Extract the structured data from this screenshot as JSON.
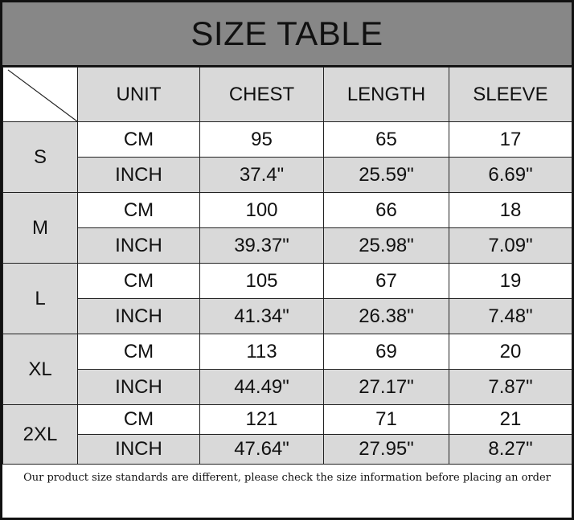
{
  "title": "SIZE TABLE",
  "headers": [
    "UNIT",
    "CHEST",
    "LENGTH",
    "SLEEVE"
  ],
  "sizes": [
    {
      "size": "S",
      "cm": [
        "CM",
        "95",
        "65",
        "17"
      ],
      "inch": [
        "INCH",
        "37.4\"",
        "25.59\"",
        "6.69\""
      ]
    },
    {
      "size": "M",
      "cm": [
        "CM",
        "100",
        "66",
        "18"
      ],
      "inch": [
        "INCH",
        "39.37\"",
        "25.98\"",
        "7.09\""
      ]
    },
    {
      "size": "L",
      "cm": [
        "CM",
        "105",
        "67",
        "19"
      ],
      "inch": [
        "INCH",
        "41.34\"",
        "26.38\"",
        "7.48\""
      ]
    },
    {
      "size": "XL",
      "cm": [
        "CM",
        "113",
        "69",
        "20"
      ],
      "inch": [
        "INCH",
        "44.49\"",
        "27.17\"",
        "7.87\""
      ]
    },
    {
      "size": "2XL",
      "cm": [
        "CM",
        "121",
        "71",
        "21"
      ],
      "inch": [
        "INCH",
        "47.64\"",
        "27.95\"",
        "8.27\""
      ]
    }
  ],
  "note": "Our product size standards are different, please check the size information before placing an order",
  "colors": {
    "title_bg": "#878787",
    "cell_gray": "#d9d9d9"
  }
}
